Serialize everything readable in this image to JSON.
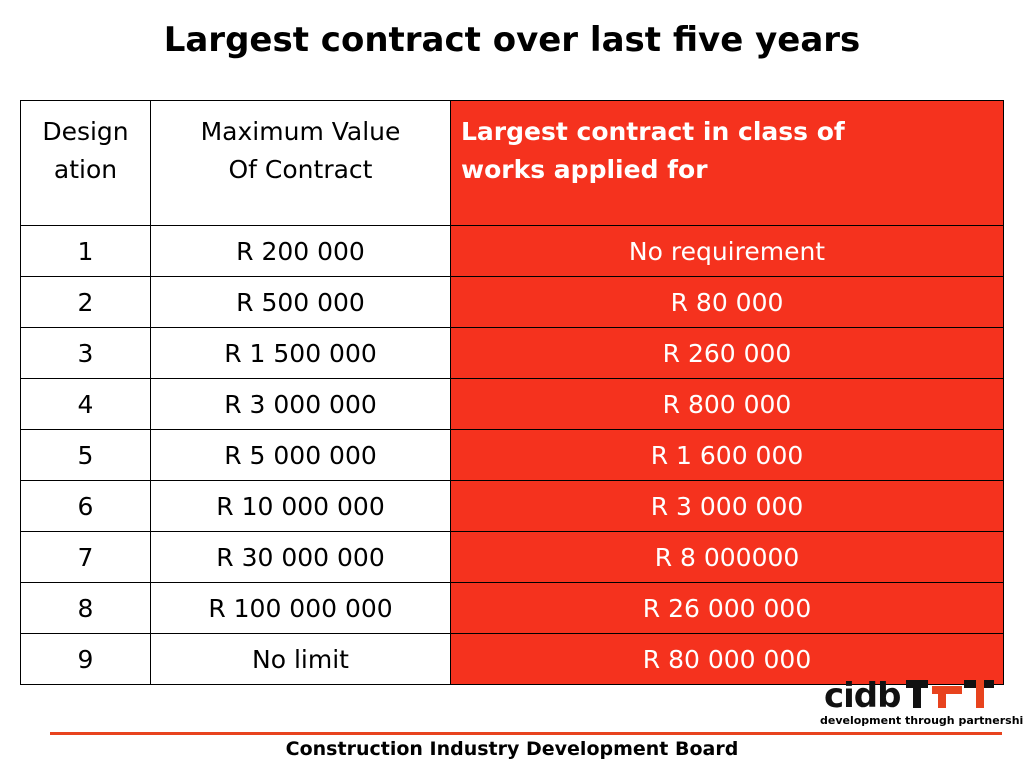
{
  "header": {
    "title": "Largest contract over last five years"
  },
  "table": {
    "headers": [
      [
        "Design",
        "ation"
      ],
      [
        "Maximum Value",
        "Of Contract"
      ],
      [
        "Largest contract in class of",
        "works applied for"
      ]
    ],
    "rows": [
      [
        "1",
        "R 200 000",
        "No requirement"
      ],
      [
        "2",
        "R 500 000",
        "R 80 000"
      ],
      [
        "3",
        "R 1 500 000",
        "R 260 000"
      ],
      [
        "4",
        "R 3 000 000",
        "R 800 000"
      ],
      [
        "5",
        "R 5 000 000",
        "R 1 600 000"
      ],
      [
        "6",
        "R 10 000 000",
        "R 3 000 000"
      ],
      [
        "7",
        "R 30 000 000",
        "R 8 000000"
      ],
      [
        "8",
        "R 100 000 000",
        "R 26 000 000"
      ],
      [
        "9",
        "No limit",
        "R 80 000 000"
      ]
    ]
  },
  "logo": {
    "name": "cidb",
    "tagline": "development through partnership"
  },
  "footer": {
    "text": "Construction Industry Development Board"
  }
}
